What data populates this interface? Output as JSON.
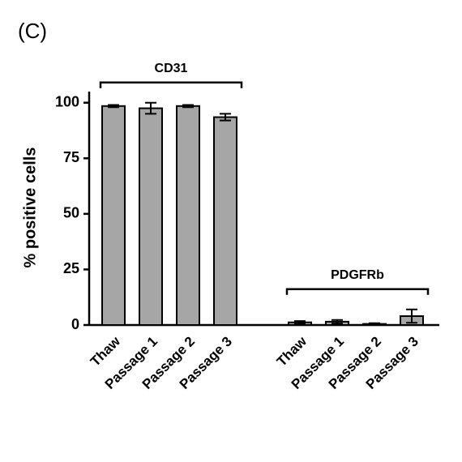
{
  "chart_data": {
    "type": "bar",
    "panel_label": "(C)",
    "y_label": "% positive cells",
    "color": "#a6a6a6",
    "ylim": [
      0,
      105
    ],
    "yticks": [
      0,
      25,
      50,
      75,
      100
    ],
    "groups": [
      {
        "name": "CD31",
        "categories": [
          "Thaw",
          "Passage 1",
          "Passage 2",
          "Passage 3"
        ],
        "values": [
          98.5,
          97.5,
          98.5,
          93.5
        ],
        "errors": [
          0.5,
          2.5,
          0.5,
          1.5
        ]
      },
      {
        "name": "PDGFRb",
        "categories": [
          "Thaw",
          "Passage 1",
          "Passage 2",
          "Passage 3"
        ],
        "values": [
          1.2,
          1.5,
          0.5,
          4
        ],
        "errors": [
          0.6,
          0.8,
          0.3,
          3
        ]
      }
    ]
  }
}
